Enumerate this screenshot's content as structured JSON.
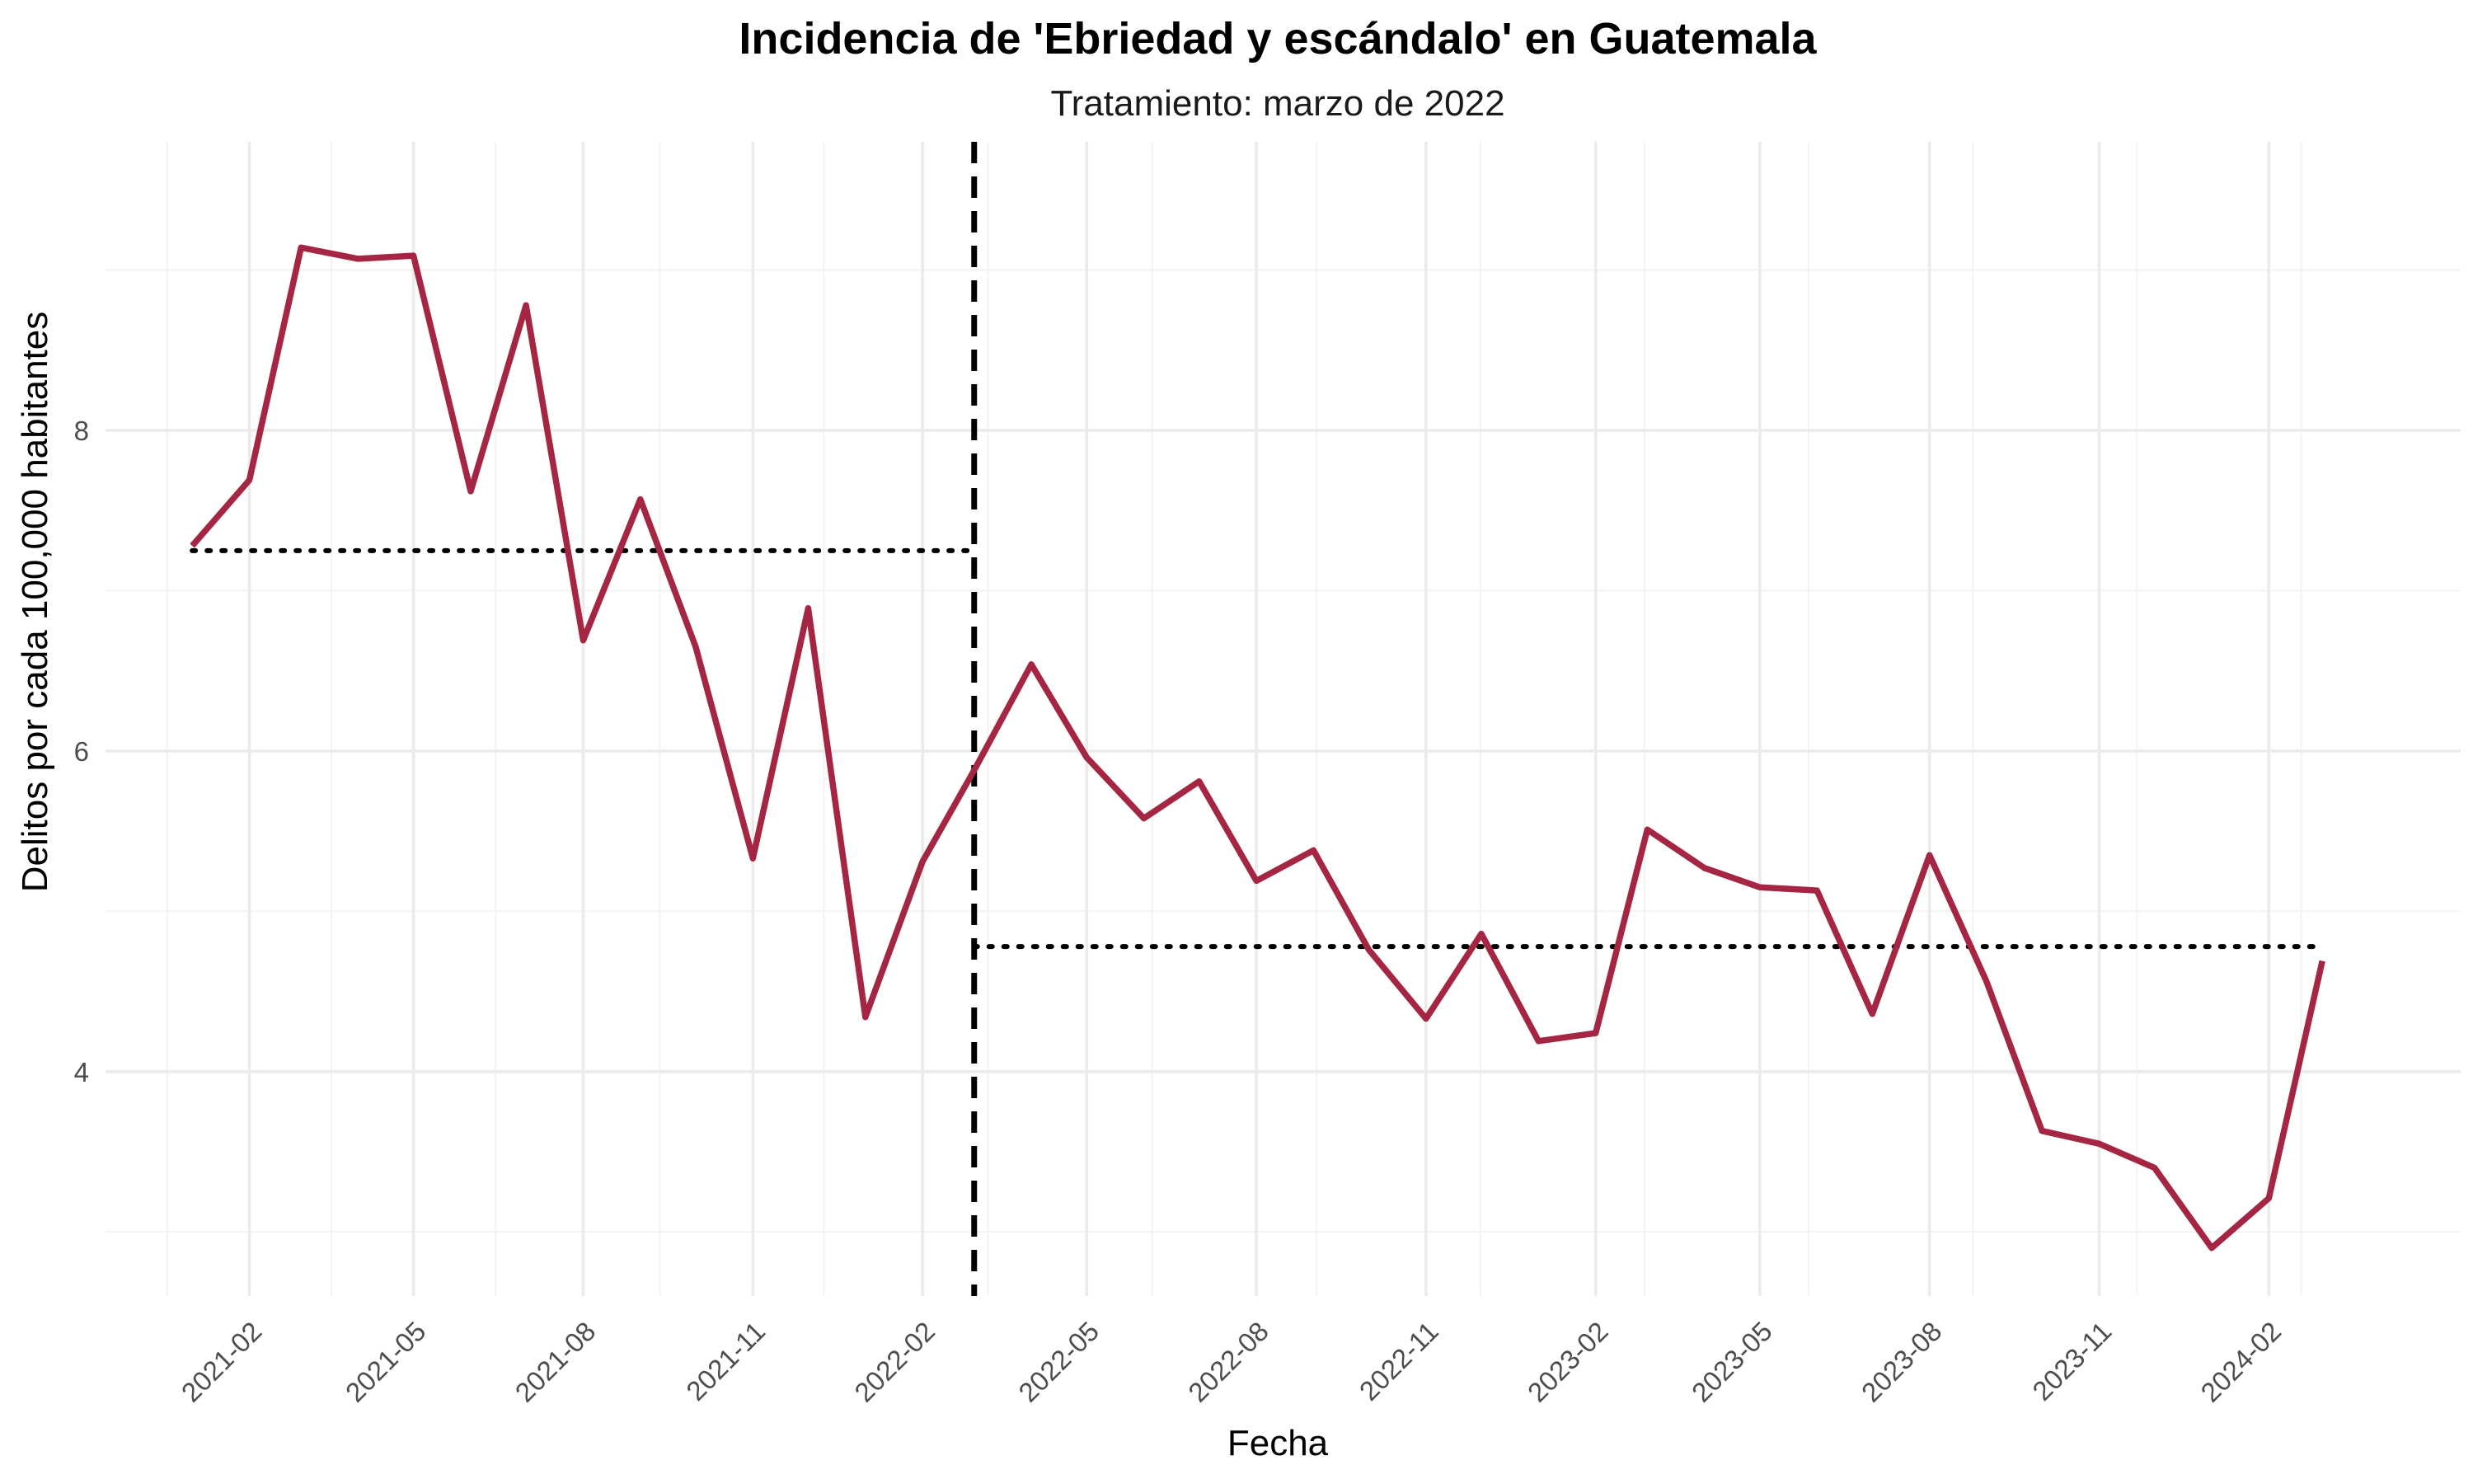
{
  "chart_data": {
    "type": "line",
    "title": "Incidencia de 'Ebriedad y escándalo' en Guatemala",
    "subtitle": "Tratamiento: marzo de 2022",
    "xlabel": "Fecha",
    "ylabel": "Delitos por cada 100,000 habitantes",
    "x_ticks": [
      "2021-02",
      "2021-05",
      "2021-08",
      "2021-11",
      "2022-02",
      "2022-05",
      "2022-08",
      "2022-11",
      "2023-02",
      "2023-05",
      "2023-08",
      "2023-11",
      "2024-02"
    ],
    "y_ticks": [
      4,
      6,
      8
    ],
    "xlim": [
      "2020-11-15",
      "2024-05-15"
    ],
    "ylim": [
      2.6,
      9.8
    ],
    "grid": true,
    "line_color": "#A52643",
    "series": [
      {
        "x": [
          "2021-01",
          "2021-02",
          "2021-03",
          "2021-04",
          "2021-05",
          "2021-06",
          "2021-07",
          "2021-08",
          "2021-09",
          "2021-10",
          "2021-11",
          "2021-12",
          "2022-01",
          "2022-02",
          "2022-03",
          "2022-04",
          "2022-05",
          "2022-06",
          "2022-07",
          "2022-08",
          "2022-09",
          "2022-10",
          "2022-11",
          "2022-12",
          "2023-01",
          "2023-02",
          "2023-03",
          "2023-04",
          "2023-05",
          "2023-06",
          "2023-07",
          "2023-08",
          "2023-09",
          "2023-10",
          "2023-11",
          "2023-12",
          "2024-01",
          "2024-02",
          "2024-03"
        ],
        "values": [
          7.28,
          7.69,
          9.14,
          9.07,
          9.09,
          7.62,
          8.78,
          6.69,
          7.57,
          6.65,
          5.33,
          6.89,
          4.34,
          5.31,
          5.88,
          6.54,
          5.96,
          5.58,
          5.81,
          5.19,
          5.38,
          4.76,
          4.33,
          4.86,
          4.19,
          4.24,
          5.51,
          5.27,
          5.15,
          5.13,
          4.36,
          5.35,
          4.56,
          3.63,
          3.55,
          3.4,
          2.9,
          3.21,
          4.69
        ]
      }
    ],
    "treatment_line": {
      "date": "2022-03",
      "style": "dashed"
    },
    "mean_lines": [
      {
        "from": "2021-01",
        "to": "2022-03",
        "value": 7.25,
        "style": "dotted"
      },
      {
        "from": "2022-03",
        "to": "2024-03",
        "value": 4.78,
        "style": "dotted"
      }
    ]
  }
}
